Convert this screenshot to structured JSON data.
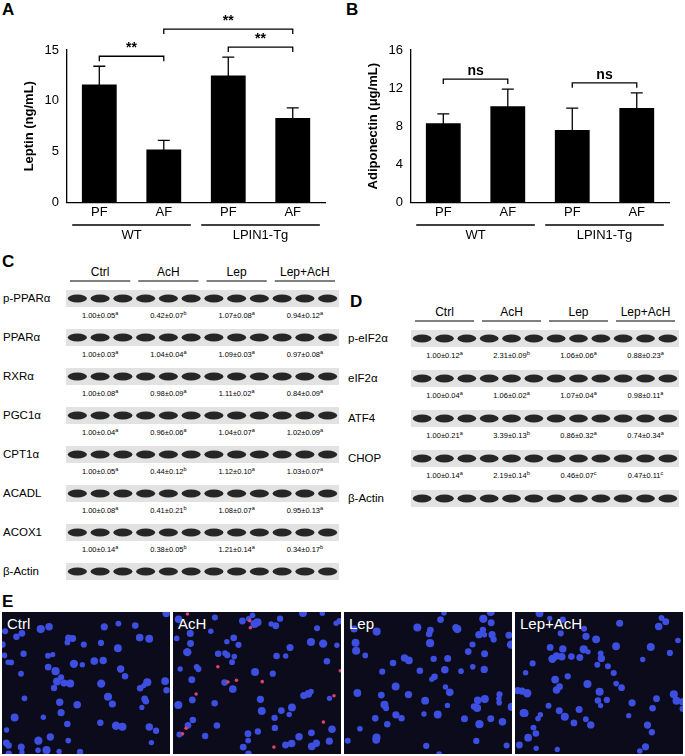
{
  "panel_labels": [
    "A",
    "B",
    "C",
    "D",
    "E"
  ],
  "chart_data": [
    {
      "type": "bar",
      "y_label": "Leptin (ng/mL)",
      "categories": [
        "PF",
        "AF",
        "PF",
        "AF"
      ],
      "groups": [
        {
          "label": "WT",
          "from": 0,
          "to": 1
        },
        {
          "label": "LPIN1-Tg",
          "from": 2,
          "to": 3
        }
      ],
      "values": [
        11.6,
        5.2,
        12.5,
        8.3
      ],
      "errors": [
        1.8,
        0.9,
        1.8,
        1.0
      ],
      "color": "#000000",
      "ylim": [
        0,
        15
      ],
      "yticks": [
        0,
        5,
        10,
        15
      ],
      "grid": false,
      "significance": [
        {
          "from": 0,
          "to": 1,
          "label": "**"
        },
        {
          "from": 2,
          "to": 3,
          "label": "**"
        },
        {
          "from": 1,
          "to": 3,
          "label": "**"
        }
      ]
    },
    {
      "type": "bar",
      "y_label": "Adiponectin (μg/mL)",
      "categories": [
        "PF",
        "AF",
        "PF",
        "AF"
      ],
      "groups": [
        {
          "label": "WT",
          "from": 0,
          "to": 1
        },
        {
          "label": "LPIN1-Tg",
          "from": 2,
          "to": 3
        }
      ],
      "values": [
        8.3,
        10.1,
        7.6,
        9.9
      ],
      "errors": [
        1.0,
        1.8,
        2.3,
        1.6
      ],
      "color": "#000000",
      "ylim": [
        0,
        16
      ],
      "yticks": [
        0,
        4,
        8,
        12,
        16
      ],
      "grid": false,
      "significance": [
        {
          "from": 0,
          "to": 1,
          "label": "ns"
        },
        {
          "from": 2,
          "to": 3,
          "label": "ns"
        }
      ]
    }
  ],
  "blots": [
    {
      "groups": [
        "Ctrl",
        "AcH",
        "Lep",
        "Lep+AcH"
      ],
      "lanes_per_group": 3,
      "rows": [
        {
          "protein": "p-PPARα",
          "quant": [
            {
              "text": "1.00±0.05",
              "letter": "a"
            },
            {
              "text": "0.42±0.07",
              "letter": "b"
            },
            {
              "text": "1.07±0.08",
              "letter": "a"
            },
            {
              "text": "0.94±0.12",
              "letter": "a"
            }
          ]
        },
        {
          "protein": "PPARα",
          "quant": [
            {
              "text": "1.00±0.03",
              "letter": "a"
            },
            {
              "text": "1.04±0.04",
              "letter": "a"
            },
            {
              "text": "1.09±0.03",
              "letter": "a"
            },
            {
              "text": "0.97±0.08",
              "letter": "a"
            }
          ]
        },
        {
          "protein": "RXRα",
          "quant": [
            {
              "text": "1.00±0.08",
              "letter": "a"
            },
            {
              "text": "0.98±0.09",
              "letter": "a"
            },
            {
              "text": "1.11±0.02",
              "letter": "a"
            },
            {
              "text": "0.84±0.09",
              "letter": "a"
            }
          ]
        },
        {
          "protein": "PGC1α",
          "quant": [
            {
              "text": "1.00±0.04",
              "letter": "a"
            },
            {
              "text": "0.96±0.06",
              "letter": "a"
            },
            {
              "text": "1.04±0.07",
              "letter": "a"
            },
            {
              "text": "1.02±0.09",
              "letter": "a"
            }
          ]
        },
        {
          "protein": "CPT1α",
          "quant": [
            {
              "text": "1.00±0.05",
              "letter": "a"
            },
            {
              "text": "0.44±0.12",
              "letter": "b"
            },
            {
              "text": "1.12±0.10",
              "letter": "a"
            },
            {
              "text": "1.03±0.07",
              "letter": "a"
            }
          ]
        },
        {
          "protein": "ACADL",
          "quant": [
            {
              "text": "1.00±0.08",
              "letter": "a"
            },
            {
              "text": "0.41±0.21",
              "letter": "b"
            },
            {
              "text": "1.08±0.07",
              "letter": "a"
            },
            {
              "text": "0.95±0.13",
              "letter": "a"
            }
          ]
        },
        {
          "protein": "ACOX1",
          "quant": [
            {
              "text": "1.00±0.14",
              "letter": "a"
            },
            {
              "text": "0.38±0.05",
              "letter": "b"
            },
            {
              "text": "1.21±0.14",
              "letter": "a"
            },
            {
              "text": "0.34±0.17",
              "letter": "b"
            }
          ]
        },
        {
          "protein": "β-Actin"
        }
      ]
    },
    {
      "groups": [
        "Ctrl",
        "AcH",
        "Lep",
        "Lep+AcH"
      ],
      "lanes_per_group": 3,
      "rows": [
        {
          "protein": "p-eIF2α",
          "quant": [
            {
              "text": "1.00±0.12",
              "letter": "a"
            },
            {
              "text": "2.31±0.09",
              "letter": "b"
            },
            {
              "text": "1.06±0.06",
              "letter": "a"
            },
            {
              "text": "0.88±0.23",
              "letter": "a"
            }
          ]
        },
        {
          "protein": "eIF2α",
          "quant": [
            {
              "text": "1.00±0.04",
              "letter": "a"
            },
            {
              "text": "1.06±0.02",
              "letter": "a"
            },
            {
              "text": "1.07±0.04",
              "letter": "a"
            },
            {
              "text": "0.98±0.11",
              "letter": "a"
            }
          ]
        },
        {
          "protein": "ATF4",
          "quant": [
            {
              "text": "1.00±0.21",
              "letter": "a"
            },
            {
              "text": "3.39±0.13",
              "letter": "b"
            },
            {
              "text": "0.86±0.32",
              "letter": "a"
            },
            {
              "text": "0.74±0.34",
              "letter": "a"
            }
          ]
        },
        {
          "protein": "CHOP",
          "quant": [
            {
              "text": "1.00±0.14",
              "letter": "a"
            },
            {
              "text": "2.19±0.14",
              "letter": "b"
            },
            {
              "text": "0.46±0.07",
              "letter": "c"
            },
            {
              "text": "0.47±0.11",
              "letter": "c"
            }
          ]
        },
        {
          "protein": "β-Actin"
        }
      ]
    }
  ],
  "images": [
    "Ctrl",
    "AcH",
    "Lep",
    "Lep+AcH"
  ]
}
